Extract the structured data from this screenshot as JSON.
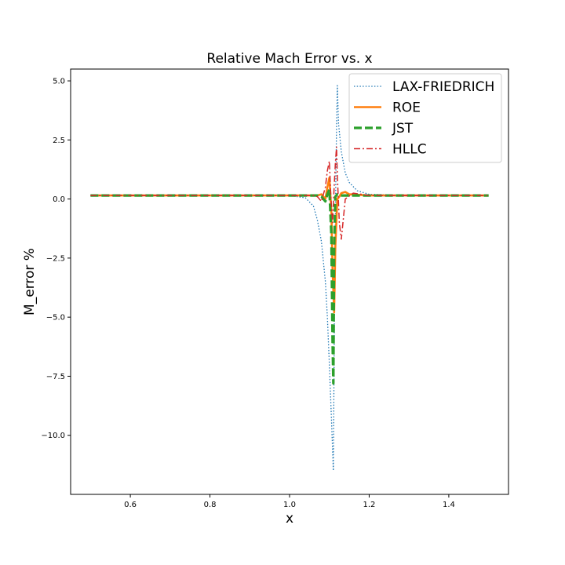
{
  "chart_data": {
    "type": "line",
    "title": "Relative Mach Error vs. x",
    "xlabel": "x",
    "ylabel": "M_error %",
    "xlim": [
      0.45,
      1.55
    ],
    "ylim": [
      -12.5,
      5.5
    ],
    "xticks": [
      0.6,
      0.8,
      1.0,
      1.2,
      1.4
    ],
    "xtick_labels": [
      "0.6",
      "0.8",
      "1.0",
      "1.2",
      "1.4"
    ],
    "yticks": [
      5.0,
      2.5,
      0.0,
      -2.5,
      -5.0,
      -7.5,
      -10.0
    ],
    "ytick_labels": [
      "5.0",
      "2.5",
      "0.0",
      "−2.5",
      "−5.0",
      "−7.5",
      "−10.0"
    ],
    "grid": false,
    "legend_position": "top-right",
    "series": [
      {
        "name": "LAX-FRIEDRICH",
        "color": "#1f77b4",
        "style": "dotted",
        "x": [
          0.5,
          0.8,
          1.0,
          1.04,
          1.06,
          1.07,
          1.08,
          1.09,
          1.095,
          1.1,
          1.105,
          1.11,
          1.113,
          1.116,
          1.118,
          1.12,
          1.123,
          1.13,
          1.14,
          1.15,
          1.17,
          1.2,
          1.3,
          1.5
        ],
        "y": [
          0.15,
          0.15,
          0.15,
          0.05,
          -0.3,
          -0.9,
          -1.8,
          -3.5,
          -5.0,
          -7.0,
          -9.2,
          -11.5,
          -4.0,
          0.5,
          3.0,
          4.8,
          3.2,
          2.0,
          1.1,
          0.7,
          0.35,
          0.2,
          0.15,
          0.15
        ]
      },
      {
        "name": "ROE",
        "color": "#ff7f0e",
        "style": "solid",
        "x": [
          0.5,
          1.0,
          1.07,
          1.08,
          1.09,
          1.095,
          1.1,
          1.105,
          1.108,
          1.112,
          1.115,
          1.12,
          1.125,
          1.13,
          1.14,
          1.15,
          1.2,
          1.5
        ],
        "y": [
          0.15,
          0.15,
          0.15,
          0.2,
          0.0,
          0.5,
          0.9,
          -0.5,
          -3.0,
          -4.8,
          -2.0,
          0.0,
          0.1,
          0.25,
          0.3,
          0.2,
          0.15,
          0.15
        ]
      },
      {
        "name": "JST",
        "color": "#2ca02c",
        "style": "dashed",
        "x": [
          0.5,
          1.0,
          1.07,
          1.08,
          1.09,
          1.095,
          1.1,
          1.105,
          1.108,
          1.11,
          1.112,
          1.115,
          1.12,
          1.13,
          1.14,
          1.15,
          1.2,
          1.5
        ],
        "y": [
          0.15,
          0.15,
          0.15,
          0.1,
          -0.1,
          0.2,
          0.4,
          -1.5,
          -6.0,
          -7.8,
          -2.0,
          0.1,
          0.2,
          0.15,
          0.15,
          0.15,
          0.15,
          0.15
        ]
      },
      {
        "name": "HLLC",
        "color": "#d62728",
        "style": "dashdot",
        "x": [
          0.5,
          1.0,
          1.06,
          1.07,
          1.08,
          1.09,
          1.095,
          1.1,
          1.104,
          1.108,
          1.112,
          1.115,
          1.118,
          1.12,
          1.125,
          1.13,
          1.14,
          1.16,
          1.2,
          1.5
        ],
        "y": [
          0.15,
          0.15,
          0.15,
          0.1,
          -0.1,
          0.5,
          1.2,
          1.6,
          0.0,
          -1.0,
          0.5,
          1.5,
          2.2,
          1.0,
          -1.0,
          -1.7,
          0.0,
          0.25,
          0.15,
          0.15
        ]
      }
    ]
  }
}
